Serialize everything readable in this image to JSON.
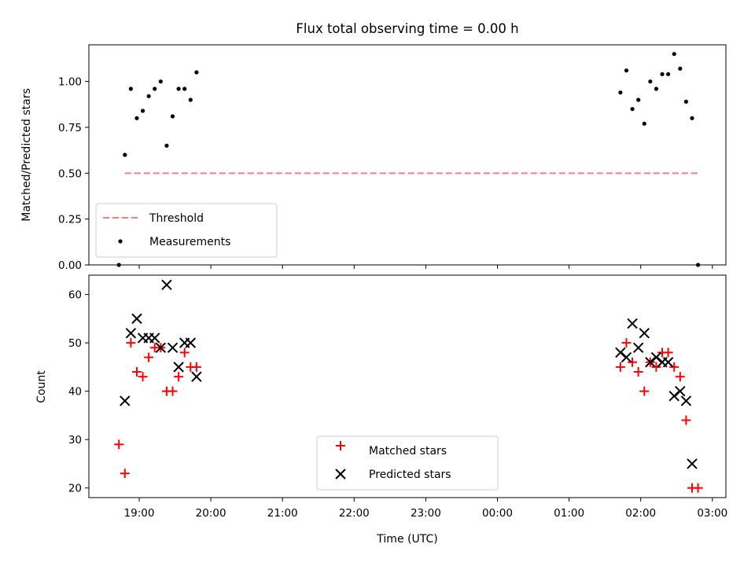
{
  "chart_data": [
    {
      "type": "scatter",
      "title": "Flux total observing time = 0.00 h",
      "xlabel": "",
      "ylabel": "Matched/Predicted stars",
      "ylim": [
        0,
        1.2
      ],
      "yticks": [
        "0.00",
        "0.25",
        "0.50",
        "0.75",
        "1.00"
      ],
      "yticks_values": [
        0,
        0.25,
        0.5,
        0.75,
        1.0
      ],
      "grid": false,
      "legend_position": "lower-left",
      "series": [
        {
          "name": "Threshold",
          "kind": "dashed-line",
          "color": "#f08080",
          "points": [
            [
              "18:48",
              0.5
            ],
            [
              "02:48",
              0.5
            ]
          ]
        },
        {
          "name": "Measurements",
          "kind": "dots",
          "color": "#000000",
          "points": [
            [
              "18:43",
              0.0
            ],
            [
              "18:48",
              0.6
            ],
            [
              "18:53",
              0.96
            ],
            [
              "18:58",
              0.8
            ],
            [
              "19:03",
              0.84
            ],
            [
              "19:08",
              0.92
            ],
            [
              "19:13",
              0.96
            ],
            [
              "19:18",
              1.0
            ],
            [
              "19:23",
              0.65
            ],
            [
              "19:28",
              0.81
            ],
            [
              "19:33",
              0.96
            ],
            [
              "19:38",
              0.96
            ],
            [
              "19:43",
              0.9
            ],
            [
              "19:48",
              1.05
            ],
            [
              "01:43",
              0.94
            ],
            [
              "01:48",
              1.06
            ],
            [
              "01:53",
              0.85
            ],
            [
              "01:58",
              0.9
            ],
            [
              "02:03",
              0.77
            ],
            [
              "02:08",
              1.0
            ],
            [
              "02:13",
              0.96
            ],
            [
              "02:18",
              1.04
            ],
            [
              "02:23",
              1.04
            ],
            [
              "02:28",
              1.15
            ],
            [
              "02:33",
              1.07
            ],
            [
              "02:38",
              0.89
            ],
            [
              "02:43",
              0.8
            ],
            [
              "02:48",
              0.0
            ]
          ]
        }
      ]
    },
    {
      "type": "scatter",
      "title": "",
      "xlabel": "Time (UTC)",
      "ylabel": "Count",
      "ylim": [
        18,
        64
      ],
      "yticks": [
        "20",
        "30",
        "40",
        "50",
        "60"
      ],
      "yticks_values": [
        20,
        30,
        40,
        50,
        60
      ],
      "xticks": [
        "19:00",
        "20:00",
        "21:00",
        "22:00",
        "23:00",
        "00:00",
        "01:00",
        "02:00",
        "03:00"
      ],
      "grid": false,
      "legend_position": "lower-center",
      "series": [
        {
          "name": "Matched stars",
          "kind": "plus",
          "color": "#ff0000",
          "points": [
            [
              "18:43",
              29
            ],
            [
              "18:48",
              23
            ],
            [
              "18:53",
              50
            ],
            [
              "18:58",
              44
            ],
            [
              "19:03",
              43
            ],
            [
              "19:08",
              47
            ],
            [
              "19:13",
              49
            ],
            [
              "19:18",
              49
            ],
            [
              "19:23",
              40
            ],
            [
              "19:28",
              40
            ],
            [
              "19:33",
              43
            ],
            [
              "19:38",
              48
            ],
            [
              "19:43",
              45
            ],
            [
              "19:48",
              45
            ],
            [
              "01:43",
              45
            ],
            [
              "01:48",
              50
            ],
            [
              "01:53",
              46
            ],
            [
              "01:58",
              44
            ],
            [
              "02:03",
              40
            ],
            [
              "02:08",
              46
            ],
            [
              "02:13",
              45
            ],
            [
              "02:18",
              48
            ],
            [
              "02:23",
              48
            ],
            [
              "02:28",
              45
            ],
            [
              "02:33",
              43
            ],
            [
              "02:38",
              34
            ],
            [
              "02:43",
              20
            ],
            [
              "02:48",
              20
            ]
          ]
        },
        {
          "name": "Predicted stars",
          "kind": "x",
          "color": "#000000",
          "points": [
            [
              "18:48",
              38
            ],
            [
              "18:53",
              52
            ],
            [
              "18:58",
              55
            ],
            [
              "19:03",
              51
            ],
            [
              "19:08",
              51
            ],
            [
              "19:13",
              51
            ],
            [
              "19:18",
              49
            ],
            [
              "19:23",
              62
            ],
            [
              "19:28",
              49
            ],
            [
              "19:33",
              45
            ],
            [
              "19:38",
              50
            ],
            [
              "19:43",
              50
            ],
            [
              "19:48",
              43
            ],
            [
              "01:43",
              48
            ],
            [
              "01:48",
              47
            ],
            [
              "01:53",
              54
            ],
            [
              "01:58",
              49
            ],
            [
              "02:03",
              52
            ],
            [
              "02:08",
              46
            ],
            [
              "02:13",
              47
            ],
            [
              "02:18",
              46
            ],
            [
              "02:23",
              46
            ],
            [
              "02:28",
              39
            ],
            [
              "02:33",
              40
            ],
            [
              "02:38",
              38
            ],
            [
              "02:43",
              25
            ]
          ]
        }
      ]
    }
  ]
}
